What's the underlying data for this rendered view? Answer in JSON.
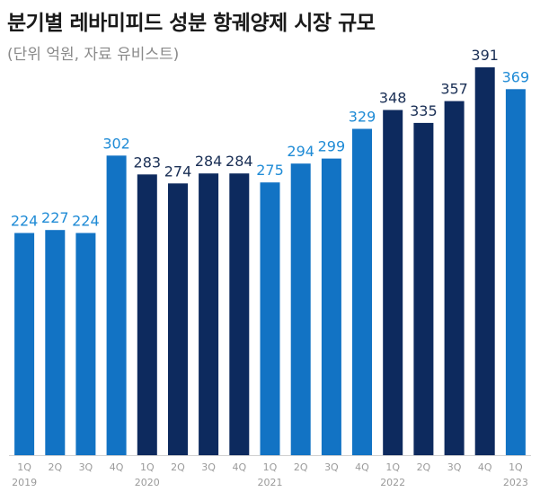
{
  "chart_data": {
    "type": "bar",
    "title": "분기별 레바미피드 성분 항궤양제 시장 규모",
    "subtitle": "(단위 억원, 자료 유비스트)",
    "categories": [
      "1Q",
      "2Q",
      "3Q",
      "4Q",
      "1Q",
      "2Q",
      "3Q",
      "4Q",
      "1Q",
      "2Q",
      "3Q",
      "4Q",
      "1Q",
      "2Q",
      "3Q",
      "4Q",
      "1Q"
    ],
    "years": [
      {
        "label": "2019",
        "index": 0
      },
      {
        "label": "2020",
        "index": 4
      },
      {
        "label": "2021",
        "index": 8
      },
      {
        "label": "2022",
        "index": 12
      },
      {
        "label": "2023",
        "index": 16
      }
    ],
    "values": [
      224,
      227,
      224,
      302,
      283,
      274,
      284,
      284,
      275,
      294,
      299,
      329,
      348,
      335,
      357,
      391,
      369
    ],
    "bar_colors": [
      "#1273c4",
      "#1273c4",
      "#1273c4",
      "#1273c4",
      "#0d2a5e",
      "#0d2a5e",
      "#0d2a5e",
      "#0d2a5e",
      "#1273c4",
      "#1273c4",
      "#1273c4",
      "#1273c4",
      "#0d2a5e",
      "#0d2a5e",
      "#0d2a5e",
      "#0d2a5e",
      "#1273c4"
    ],
    "label_colors": [
      "#1f8bd6",
      "#1f8bd6",
      "#1f8bd6",
      "#1f8bd6",
      "#1a2f55",
      "#1a2f55",
      "#1a2f55",
      "#1a2f55",
      "#1f8bd6",
      "#1f8bd6",
      "#1f8bd6",
      "#1f8bd6",
      "#1a2f55",
      "#1a2f55",
      "#1a2f55",
      "#1a2f55",
      "#1f8bd6"
    ],
    "ylim": [
      0,
      391
    ],
    "xlabel": "",
    "ylabel": ""
  }
}
